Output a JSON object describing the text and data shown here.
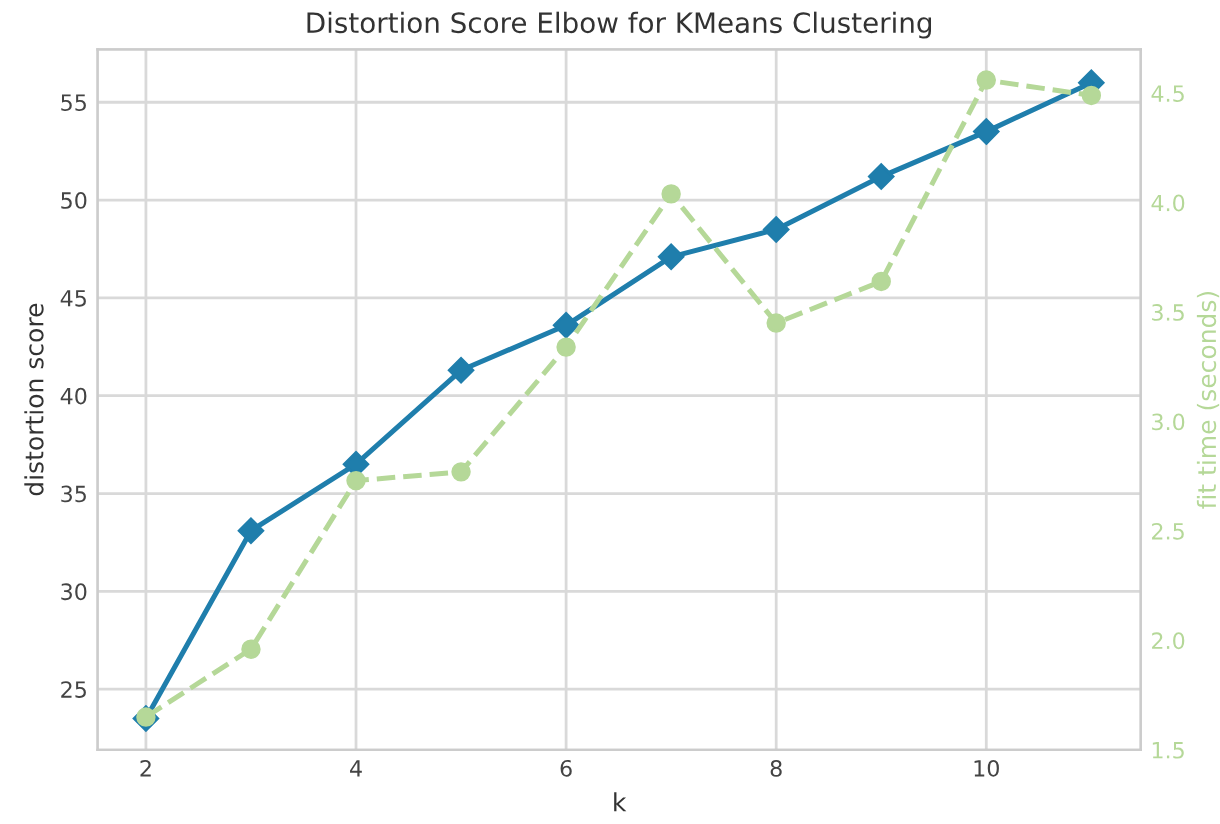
{
  "chart_data": {
    "type": "line",
    "title": "Distortion Score Elbow for KMeans Clustering",
    "xlabel": "k",
    "ylabel": "distortion score",
    "y2label": "fit time (seconds)",
    "x": [
      2,
      3,
      4,
      5,
      6,
      7,
      8,
      9,
      10,
      11
    ],
    "series": [
      {
        "color": "#1f7eac",
        "marker": "diamond",
        "line_style": "solid",
        "values": [
          23.5,
          33.1,
          36.5,
          41.3,
          43.6,
          47.1,
          48.5,
          51.2,
          53.5,
          56.0
        ]
      },
      {
        "color": "#b5d898",
        "marker": "circle",
        "line_style": "dashed",
        "axis": "y2",
        "values": [
          1.65,
          1.96,
          2.73,
          2.77,
          3.34,
          4.04,
          3.45,
          3.64,
          4.56,
          4.49
        ]
      }
    ],
    "xlim": [
      1.54,
      11.47
    ],
    "xticks": [
      2,
      4,
      6,
      8,
      10
    ],
    "ylim": [
      21.9,
      57.7
    ],
    "yticks": [
      25,
      30,
      35,
      40,
      45,
      50,
      55
    ],
    "y2lim": [
      1.5,
      4.7
    ],
    "y2ticks": [
      1.5,
      {
        "value": 2,
        "label": "2.0"
      },
      2.5,
      {
        "value": 3,
        "label": "3.0"
      },
      3.5,
      {
        "value": 4,
        "label": "4.0"
      },
      4.5
    ],
    "grid": true
  }
}
